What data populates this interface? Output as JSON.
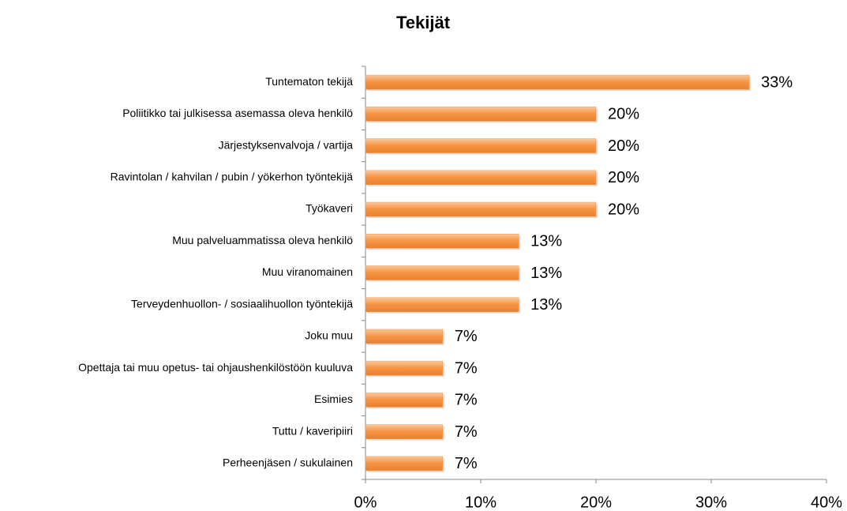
{
  "chart_data": {
    "type": "barh",
    "title": "Tekijät",
    "categories": [
      "Tuntematon tekijä",
      "Poliitikko tai julkisessa asemassa oleva henkilö",
      "Järjestyksenvalvoja / vartija",
      "Ravintolan / kahvilan / pubin / yökerhon työntekijä",
      "Työkaveri",
      "Muu palveluammatissa oleva henkilö",
      "Muu viranomainen",
      "Terveydenhuollon- / sosiaalihuollon työntekijä",
      "Joku muu",
      "Opettaja tai muu opetus- tai ohjaushenkilöstöön kuuluva",
      "Esimies",
      "Tuttu / kaveripiiri",
      "Perheenjäsen / sukulainen"
    ],
    "values": [
      33.3,
      20,
      20,
      20,
      20,
      13.3,
      13.3,
      13.3,
      6.7,
      6.7,
      6.7,
      6.7,
      6.7
    ],
    "value_labels": [
      "33%",
      "20%",
      "20%",
      "20%",
      "20%",
      "13%",
      "13%",
      "13%",
      "7%",
      "7%",
      "7%",
      "7%",
      "7%"
    ],
    "color": "#f79646",
    "xlim": [
      0,
      40
    ],
    "xticks": [
      {
        "value": 0,
        "label": "0%"
      },
      {
        "value": 10,
        "label": "10%"
      },
      {
        "value": 20,
        "label": "20%"
      },
      {
        "value": 30,
        "label": "30%"
      },
      {
        "value": 40,
        "label": "40%"
      }
    ],
    "grid": false
  }
}
